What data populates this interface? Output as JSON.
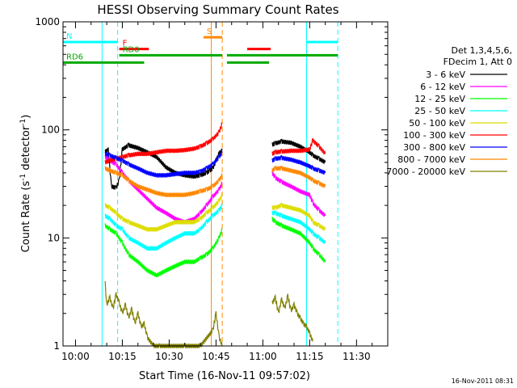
{
  "chart_data": {
    "type": "line",
    "title": "HESSI Observing Summary Count Rates",
    "xlabel": "Start Time (16-Nov-11 09:57:02)",
    "ylabel_main": "Count Rate (s",
    "ylabel_sup1": "-1",
    "ylabel_mid": " detector",
    "ylabel_sup2": "-1",
    "ylabel_end": ")",
    "yscale": "log",
    "ylim": [
      1,
      1000
    ],
    "xlim_minutes": [
      -4,
      37
    ],
    "x_unit": "minutes after 10:00",
    "x_ticks": [
      {
        "t": 0,
        "label": "10:00"
      },
      {
        "t": 15,
        "label": "10:15"
      },
      {
        "t": 30,
        "label": "10:30"
      },
      {
        "t": 45,
        "label": "10:45"
      },
      {
        "t": 60,
        "label": "11:00"
      },
      {
        "t": 75,
        "label": "11:15"
      },
      {
        "t": 90,
        "label": "11:30"
      }
    ],
    "y_ticks": [
      {
        "v": 1,
        "label": "1"
      },
      {
        "v": 10,
        "label": "10"
      },
      {
        "v": 100,
        "label": "100"
      },
      {
        "v": 1000,
        "label": "1000"
      }
    ],
    "legend_header": [
      "Det 1,3,4,5,6,",
      "FDecim 1, Att 0"
    ],
    "x_ticks_note": "t in minutes after 10:00",
    "series": [
      {
        "name": "3 - 6 keV",
        "color": "#000000",
        "x": [
          9.5,
          10.5,
          11.5,
          13,
          14,
          15,
          17,
          20,
          23,
          26,
          29,
          32,
          35,
          38,
          40,
          42,
          43,
          44,
          45,
          46,
          47
        ],
        "y": [
          63,
          65,
          30,
          29,
          34,
          66,
          72,
          68,
          62,
          56,
          45,
          40,
          38,
          37,
          38,
          40,
          42,
          44,
          52,
          60,
          65
        ],
        "x2": [
          63,
          64,
          66,
          69,
          72,
          75,
          76,
          78,
          80
        ],
        "y2": [
          73,
          75,
          78,
          76,
          70,
          62,
          58,
          54,
          50
        ]
      },
      {
        "name": "6 - 12 keV",
        "color": "#ff00ff",
        "x": [
          9.5,
          11,
          13,
          15,
          17,
          20,
          23,
          26,
          29,
          32,
          35,
          38,
          40,
          42,
          44,
          46,
          47
        ],
        "y": [
          56,
          52,
          48,
          40,
          34,
          28,
          23,
          19,
          17,
          15,
          14,
          15,
          17,
          20,
          24,
          28,
          32
        ],
        "x2": [
          63,
          64,
          66,
          69,
          72,
          75,
          76,
          78,
          80
        ],
        "y2": [
          40,
          36,
          33,
          30,
          27,
          25,
          21,
          18,
          16
        ]
      },
      {
        "name": "12 - 25 keV",
        "color": "#00ff00",
        "x": [
          9.5,
          11,
          13,
          15,
          17,
          20,
          23,
          26,
          29,
          32,
          35,
          38,
          40,
          42,
          44,
          46,
          47
        ],
        "y": [
          13,
          12,
          11,
          9,
          7,
          6,
          5,
          4.5,
          5,
          5.5,
          6,
          6,
          6.5,
          7,
          8,
          10,
          12
        ],
        "x2": [
          63,
          64,
          66,
          69,
          72,
          75,
          76,
          78,
          80
        ],
        "y2": [
          15,
          14,
          13,
          12,
          11,
          9,
          8,
          7,
          6
        ]
      },
      {
        "name": "25 - 50 keV",
        "color": "#00ffff",
        "x": [
          9.5,
          11,
          13,
          15,
          17,
          20,
          23,
          26,
          29,
          32,
          35,
          38,
          40,
          42,
          44,
          46,
          47
        ],
        "y": [
          16,
          15,
          13,
          12,
          10,
          9,
          8,
          8,
          9,
          10,
          11,
          11,
          12,
          14,
          16,
          18,
          20
        ],
        "x2": [
          63,
          64,
          66,
          69,
          72,
          75,
          76,
          78,
          80
        ],
        "y2": [
          17,
          17,
          16,
          15,
          14,
          12,
          11,
          10,
          9
        ]
      },
      {
        "name": "50 - 100 keV",
        "color": "#dddd00",
        "x": [
          9.5,
          11,
          13,
          15,
          17,
          20,
          23,
          26,
          29,
          32,
          35,
          38,
          40,
          42,
          44,
          46,
          47
        ],
        "y": [
          20,
          19,
          17,
          15,
          14,
          13,
          12,
          12,
          13,
          14,
          14,
          14,
          15,
          17,
          19,
          22,
          25
        ],
        "x2": [
          63,
          64,
          66,
          69,
          72,
          75,
          76,
          78,
          80
        ],
        "y2": [
          19,
          19,
          20,
          19,
          18,
          16,
          14,
          13,
          12
        ]
      },
      {
        "name": "100 - 300 keV",
        "color": "#ff0000",
        "x": [
          9.5,
          11,
          13,
          15,
          17,
          20,
          23,
          26,
          29,
          32,
          35,
          38,
          40,
          42,
          44,
          46,
          47
        ],
        "y": [
          50,
          52,
          54,
          56,
          58,
          60,
          60,
          62,
          64,
          64,
          65,
          67,
          70,
          75,
          82,
          95,
          115
        ],
        "x2": [
          63,
          64,
          66,
          69,
          72,
          75,
          76,
          78,
          80
        ],
        "y2": [
          60,
          62,
          63,
          64,
          64,
          66,
          80,
          70,
          60
        ]
      },
      {
        "name": "300 - 800 keV",
        "color": "#0000ff",
        "x": [
          9.5,
          11,
          13,
          15,
          17,
          20,
          23,
          26,
          29,
          32,
          35,
          38,
          40,
          42,
          44,
          46,
          47
        ],
        "y": [
          60,
          58,
          55,
          52,
          48,
          44,
          40,
          38,
          38,
          39,
          40,
          40,
          41,
          44,
          48,
          56,
          62
        ],
        "x2": [
          63,
          64,
          66,
          69,
          72,
          75,
          76,
          78,
          80
        ],
        "y2": [
          52,
          54,
          55,
          53,
          50,
          46,
          44,
          42,
          40
        ]
      },
      {
        "name": "800 - 7000 keV",
        "color": "#ff8800",
        "x": [
          9.5,
          11,
          13,
          15,
          17,
          20,
          23,
          26,
          29,
          32,
          35,
          38,
          40,
          42,
          44,
          46,
          47
        ],
        "y": [
          44,
          42,
          40,
          38,
          34,
          30,
          28,
          26,
          25,
          25,
          25,
          26,
          27,
          28,
          30,
          34,
          38
        ],
        "x2": [
          63,
          64,
          66,
          69,
          72,
          75,
          76,
          78,
          80
        ],
        "y2": [
          42,
          44,
          44,
          42,
          40,
          36,
          34,
          32,
          30
        ]
      },
      {
        "name": "7000 - 20000 keV",
        "color": "#808000",
        "x": [
          9.5,
          10,
          11,
          12,
          13,
          14,
          15,
          16,
          17,
          18,
          19,
          20,
          21,
          22,
          23,
          25,
          27,
          30,
          35,
          40,
          44,
          45,
          46,
          47
        ],
        "y": [
          3.8,
          2.4,
          2.8,
          2.2,
          3.0,
          2.5,
          2.0,
          2.4,
          1.8,
          2.2,
          1.6,
          2.0,
          1.5,
          1.6,
          1.2,
          1,
          1,
          1,
          1,
          1,
          1.4,
          2.0,
          1.2,
          1
        ],
        "x2": [
          63,
          64,
          65,
          66,
          67,
          68,
          69,
          70,
          71,
          72,
          73,
          74,
          75,
          76
        ],
        "y2": [
          2.5,
          2.8,
          2.0,
          2.7,
          2.2,
          2.9,
          2.1,
          2.4,
          2.0,
          1.8,
          1.6,
          1.5,
          1.3,
          1.1
        ]
      }
    ],
    "flags": [
      {
        "name": "N",
        "color": "#00ffff",
        "y": 650,
        "segments": [
          [
            -4,
            13.5
          ],
          [
            74,
            84
          ]
        ]
      },
      {
        "name": "F",
        "color": "#ff0000",
        "y": 560,
        "segments": [
          [
            14,
            23.5
          ],
          [
            55,
            62.5
          ]
        ]
      },
      {
        "name": "S",
        "color": "#ff8800",
        "y": 720,
        "segments": [
          [
            41,
            47
          ]
        ]
      },
      {
        "name": "RD0",
        "color": "#00aa00",
        "y": 490,
        "segments": [
          [
            14,
            47
          ],
          [
            48.5,
            84
          ]
        ]
      },
      {
        "name": "RD6",
        "color": "#00aa00",
        "y": 420,
        "segments": [
          [
            -4,
            22
          ],
          [
            48.5,
            62
          ]
        ]
      }
    ],
    "vlines": [
      {
        "t": 8.5,
        "color": "#00ffff",
        "dashed": false
      },
      {
        "t": 13.5,
        "color": "#00ffff",
        "dashed": true
      },
      {
        "t": 43.5,
        "color": "#ff8800",
        "dashed": false
      },
      {
        "t": 47,
        "color": "#ff8800",
        "dashed": true
      },
      {
        "t": 74,
        "color": "#00ffff",
        "dashed": false
      },
      {
        "t": 84,
        "color": "#00ffff",
        "dashed": true
      }
    ],
    "gap": [
      47,
      53
    ],
    "timestamp": "16-Nov-2011 08:31"
  }
}
